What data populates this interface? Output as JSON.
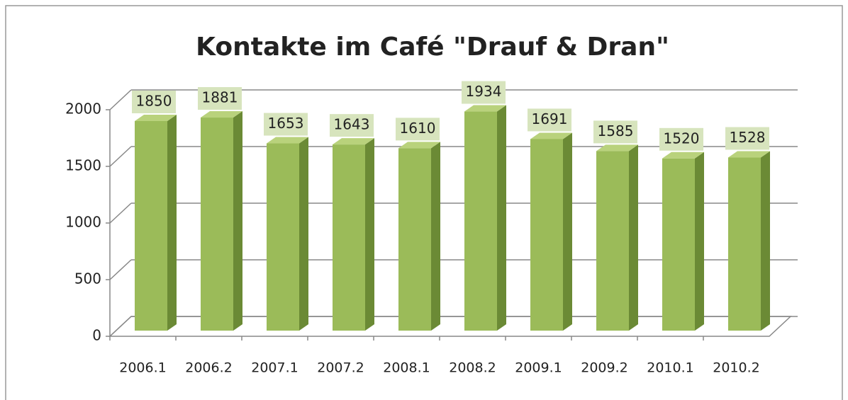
{
  "chart_data": {
    "type": "bar",
    "title": "Kontakte im Café \"Drauf & Dran\"",
    "categories": [
      "2006.1",
      "2006.2",
      "2007.1",
      "2007.2",
      "2008.1",
      "2008.2",
      "2009.1",
      "2009.2",
      "2010.1",
      "2010.2"
    ],
    "values": [
      1850,
      1881,
      1653,
      1643,
      1610,
      1934,
      1691,
      1585,
      1520,
      1528
    ],
    "color": "#9bbb59",
    "ylim": [
      0,
      2000
    ],
    "yticks": [
      0,
      500,
      1000,
      1500,
      2000
    ],
    "grid": true
  }
}
